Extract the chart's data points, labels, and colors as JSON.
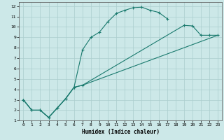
{
  "xlabel": "Humidex (Indice chaleur)",
  "bg_color": "#cce8e8",
  "grid_color": "#aacece",
  "line_color": "#1a7a6e",
  "xlim": [
    -0.5,
    23.5
  ],
  "ylim": [
    1,
    12.4
  ],
  "xticks": [
    0,
    1,
    2,
    3,
    4,
    5,
    6,
    7,
    8,
    9,
    10,
    11,
    12,
    13,
    14,
    15,
    16,
    17,
    18,
    19,
    20,
    21,
    22,
    23
  ],
  "yticks": [
    1,
    2,
    3,
    4,
    5,
    6,
    7,
    8,
    9,
    10,
    11,
    12
  ],
  "c1x": [
    0,
    1,
    2,
    3,
    4,
    5,
    6,
    7,
    8,
    9,
    10,
    11,
    12,
    13,
    14,
    15,
    16,
    17
  ],
  "c1y": [
    3,
    2,
    2,
    1.3,
    2.2,
    3.1,
    4.2,
    7.8,
    9.0,
    9.5,
    10.5,
    11.3,
    11.6,
    11.85,
    11.9,
    11.6,
    11.4,
    10.8
  ],
  "c2x": [
    0,
    1,
    2,
    3,
    4,
    5,
    6,
    7,
    19,
    20,
    21,
    22,
    23
  ],
  "c2y": [
    3,
    2,
    2,
    1.3,
    2.2,
    3.1,
    4.2,
    4.4,
    10.15,
    10.1,
    9.2,
    9.2,
    9.2
  ],
  "c3x": [
    0,
    1,
    2,
    3,
    4,
    5,
    6,
    7,
    23
  ],
  "c3y": [
    3,
    2,
    2,
    1.3,
    2.2,
    3.1,
    4.2,
    4.4,
    9.2
  ]
}
